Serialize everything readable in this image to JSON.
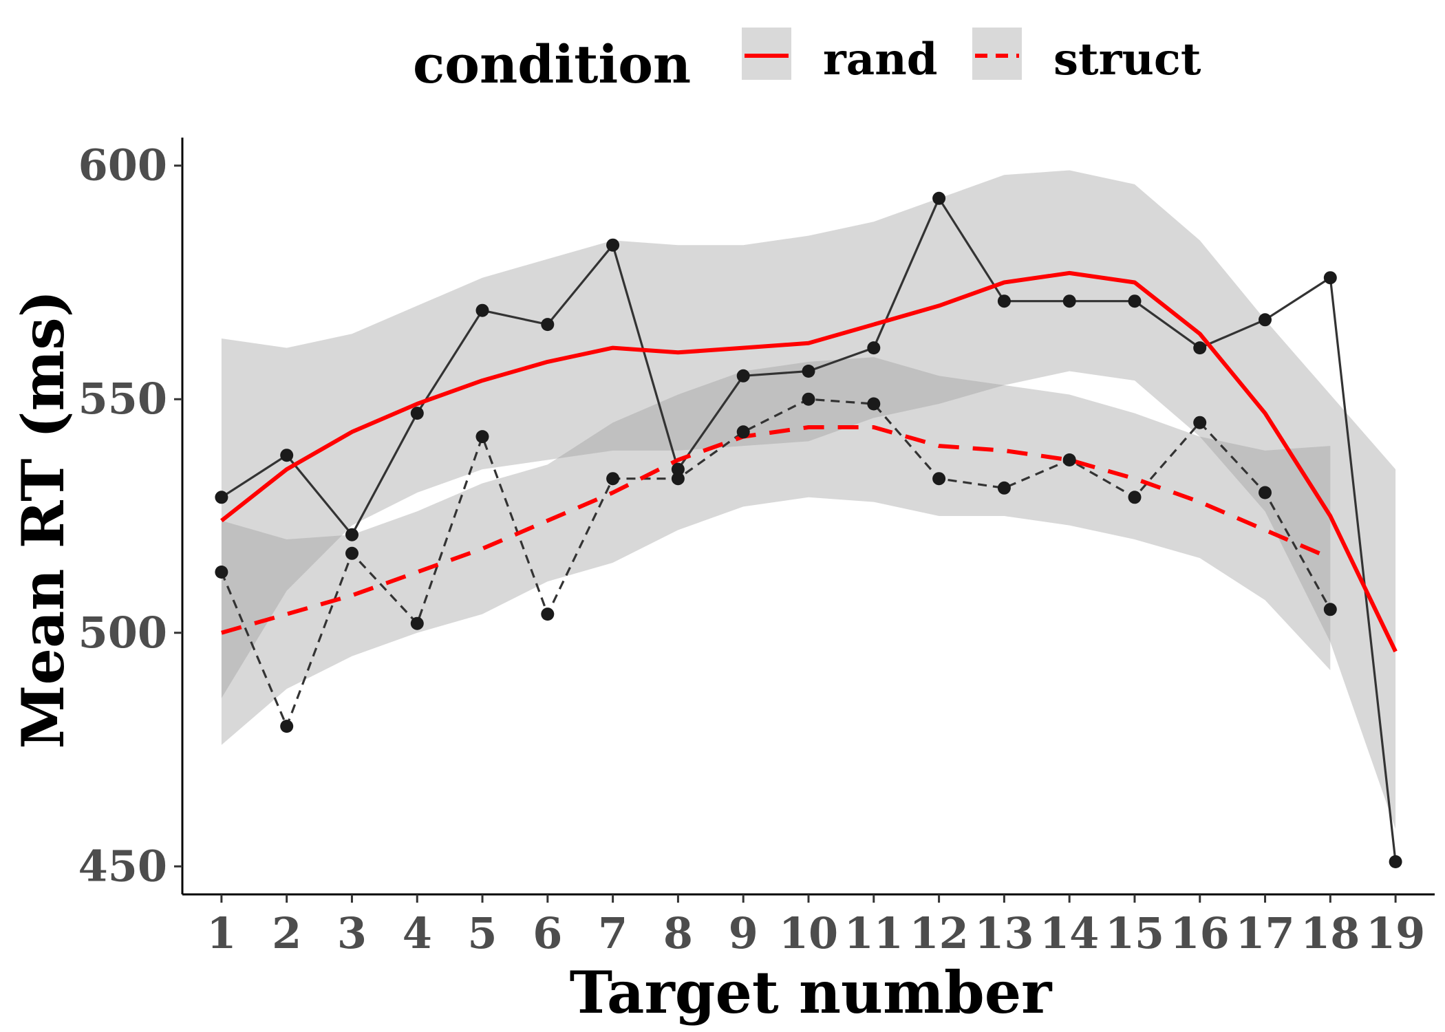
{
  "chart_data": {
    "type": "line",
    "xlabel": "Target number",
    "ylabel": "Mean RT (ms)",
    "x": [
      1,
      2,
      3,
      4,
      5,
      6,
      7,
      8,
      9,
      10,
      11,
      12,
      13,
      14,
      15,
      16,
      17,
      18,
      19
    ],
    "xticks": [
      "1",
      "2",
      "3",
      "4",
      "5",
      "6",
      "7",
      "8",
      "9",
      "10",
      "11",
      "12",
      "13",
      "14",
      "15",
      "16",
      "17",
      "18",
      "19"
    ],
    "yticks": [
      "450",
      "500",
      "550",
      "600"
    ],
    "ytick_values": [
      450,
      500,
      550,
      600
    ],
    "xlim": [
      0.4,
      19.6
    ],
    "ylim": [
      444,
      606
    ],
    "grid": false,
    "legend": {
      "title": "condition",
      "placement": "top",
      "items": [
        {
          "label": "rand",
          "dash": "solid"
        },
        {
          "label": "struct",
          "dash": "dashed"
        }
      ]
    },
    "colors": {
      "observed": "#333333",
      "smooth": "#ff0000",
      "band": "#999999",
      "point": "#1a1a1a"
    },
    "series": [
      {
        "name": "rand",
        "dash": "solid",
        "x": [
          1,
          2,
          3,
          4,
          5,
          6,
          7,
          8,
          9,
          10,
          11,
          12,
          13,
          14,
          15,
          16,
          17,
          18,
          19
        ],
        "observed": [
          529,
          538,
          521,
          547,
          569,
          566,
          583,
          535,
          555,
          556,
          561,
          593,
          571,
          571,
          571,
          561,
          567,
          576,
          451
        ],
        "smooth": [
          524,
          535,
          543,
          549,
          554,
          558,
          561,
          560,
          561,
          562,
          566,
          570,
          575,
          577,
          575,
          564,
          547,
          525,
          496
        ],
        "band_upper": [
          563,
          561,
          564,
          570,
          576,
          580,
          584,
          583,
          583,
          585,
          588,
          593,
          598,
          599,
          596,
          584,
          567,
          551,
          535
        ],
        "band_lower": [
          486,
          509,
          523,
          530,
          535,
          537,
          539,
          539,
          540,
          541,
          546,
          549,
          553,
          556,
          554,
          542,
          526,
          498,
          458
        ]
      },
      {
        "name": "struct",
        "dash": "dashed",
        "x": [
          1,
          2,
          3,
          4,
          5,
          6,
          7,
          8,
          9,
          10,
          11,
          12,
          13,
          14,
          15,
          16,
          17,
          18
        ],
        "observed": [
          513,
          480,
          517,
          502,
          542,
          504,
          533,
          533,
          543,
          550,
          549,
          533,
          531,
          537,
          529,
          545,
          530,
          505
        ],
        "smooth": [
          500,
          504,
          508,
          513,
          518,
          524,
          530,
          537,
          542,
          544,
          544,
          540,
          539,
          537,
          533,
          528,
          522,
          516
        ],
        "band_upper": [
          524,
          520,
          521,
          526,
          532,
          536,
          545,
          551,
          556,
          558,
          559,
          555,
          553,
          551,
          547,
          542,
          539,
          540
        ],
        "band_lower": [
          476,
          488,
          495,
          500,
          504,
          511,
          515,
          522,
          527,
          529,
          528,
          525,
          525,
          523,
          520,
          516,
          507,
          492
        ]
      }
    ]
  }
}
